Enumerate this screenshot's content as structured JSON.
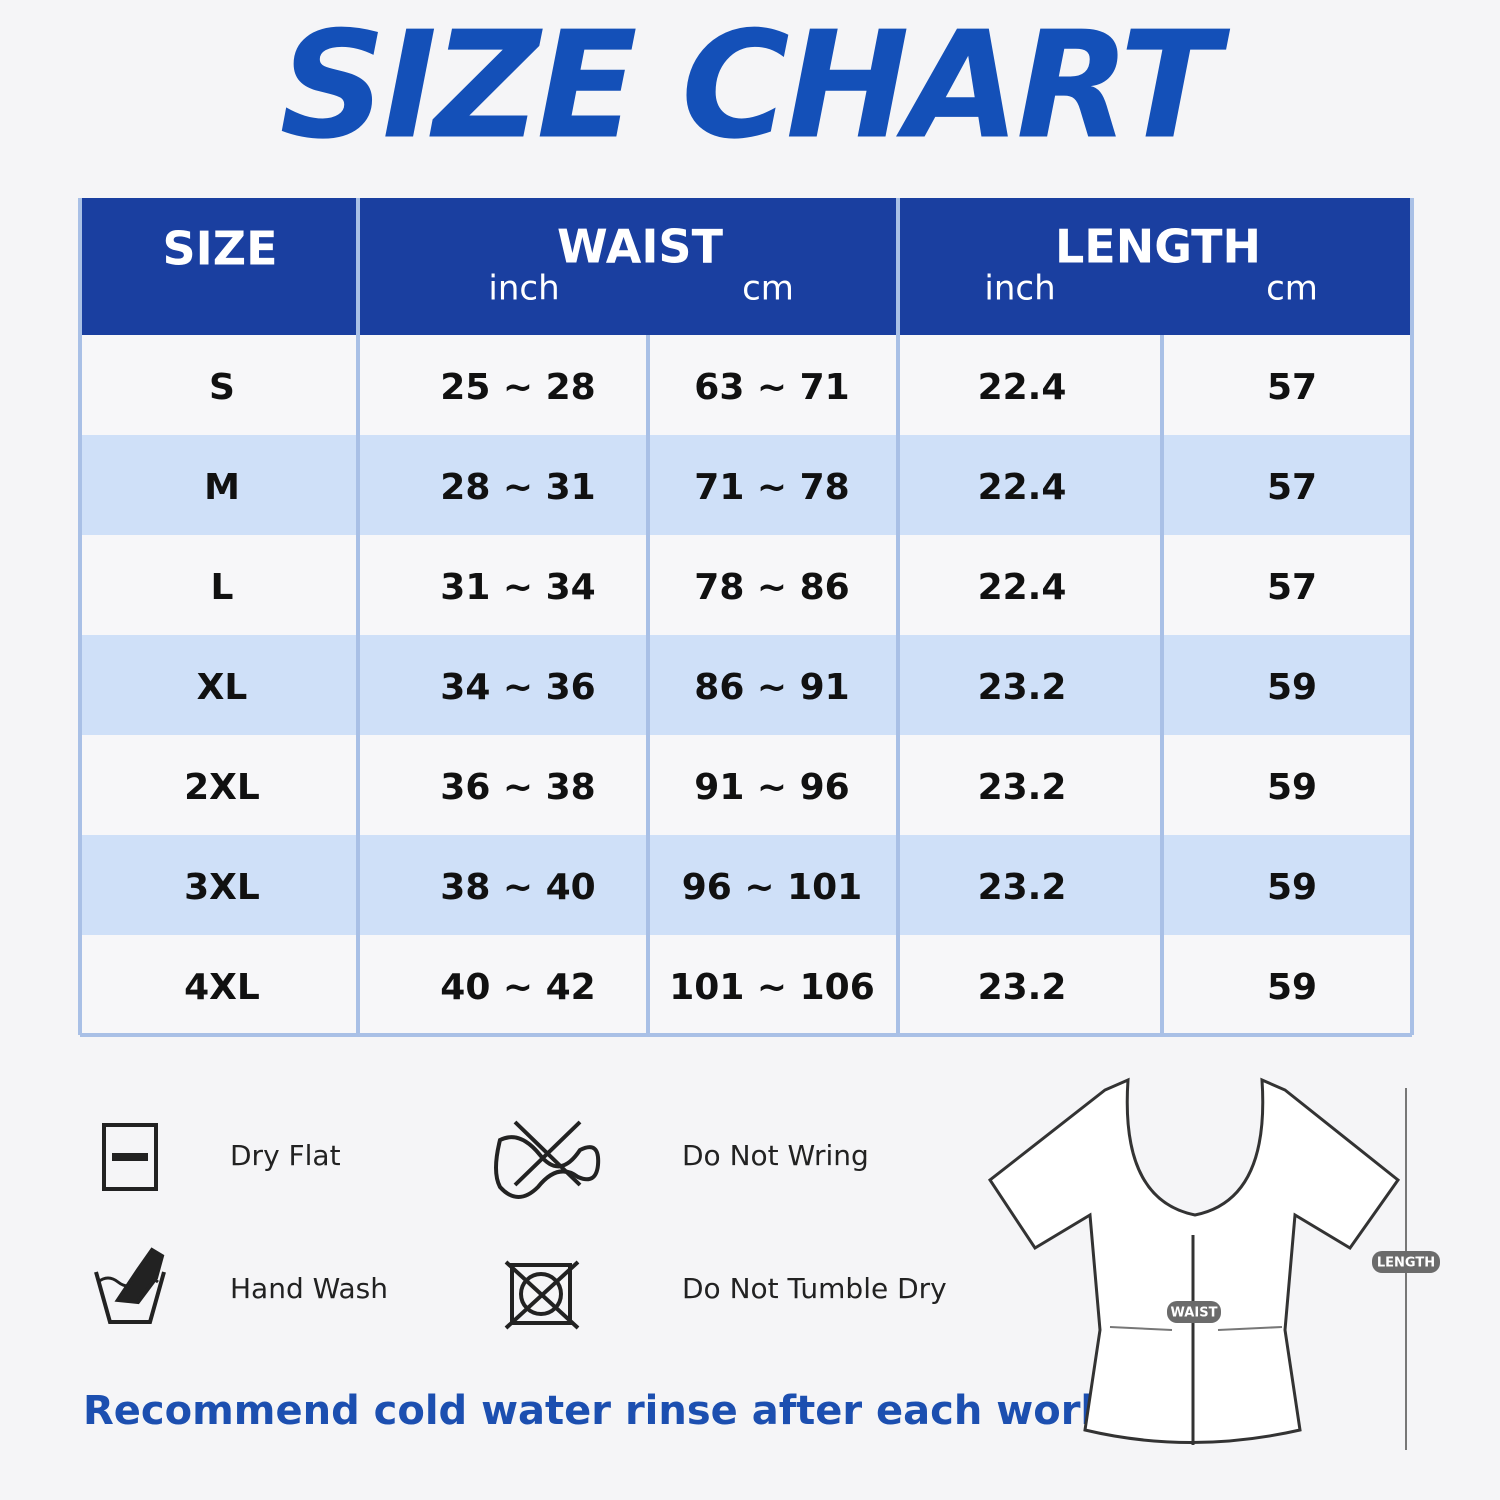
{
  "header": {
    "title": "SIZE CHART"
  },
  "table": {
    "columns": [
      {
        "label": "SIZE"
      },
      {
        "label": "WAIST",
        "units": [
          "inch",
          "cm"
        ]
      },
      {
        "label": "LENGTH",
        "units": [
          "inch",
          "cm"
        ]
      }
    ],
    "rows": [
      [
        "S",
        "25 ~ 28",
        "63 ~ 71",
        "22.4",
        "57"
      ],
      [
        "M",
        "28 ~ 31",
        "71 ~ 78",
        "22.4",
        "57"
      ],
      [
        "L",
        "31 ~ 34",
        "78 ~ 86",
        "22.4",
        "57"
      ],
      [
        "XL",
        "34 ~ 36",
        "86 ~ 91",
        "23.2",
        "59"
      ],
      [
        "2XL",
        "36 ~ 38",
        "91 ~ 96",
        "23.2",
        "59"
      ],
      [
        "3XL",
        "38 ~ 40",
        "96 ~ 101",
        "23.2",
        "59"
      ],
      [
        "4XL",
        "40 ~ 42",
        "101 ~ 106",
        "23.2",
        "59"
      ]
    ]
  },
  "care": [
    {
      "label": "Dry Flat"
    },
    {
      "label": "Do Not Wring"
    },
    {
      "label": "Hand Wash"
    },
    {
      "label": "Do Not Tumble Dry"
    }
  ],
  "note": "Recommend cold water rinse after each workout.",
  "diagram": {
    "labels": [
      "WAIST",
      "LENGTH"
    ]
  }
}
